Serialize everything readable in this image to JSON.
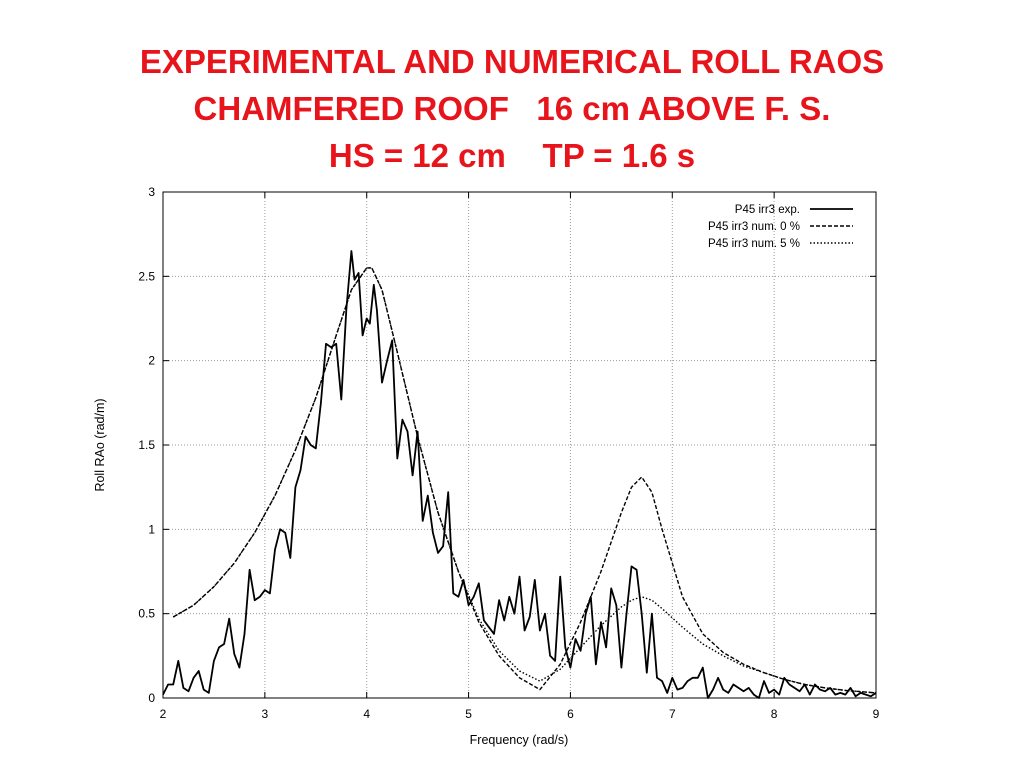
{
  "title": {
    "line1": "EXPERIMENTAL AND NUMERICAL ROLL RAOS",
    "line2": "CHAMFERED ROOF   16 cm ABOVE F. S.",
    "line3": "HS = 12 cm    TP = 1.6 s"
  },
  "colors": {
    "title": "#e8141b",
    "series": "#000000",
    "grid": "#9a9a9a"
  },
  "chart_data": {
    "type": "line",
    "xlabel": "Frequency  (rad/s)",
    "ylabel": "Roll RAo  (rad/m)",
    "xlim": [
      2,
      9
    ],
    "ylim": [
      0,
      3
    ],
    "xticks": [
      "2",
      "3",
      "4",
      "5",
      "6",
      "7",
      "8",
      "9"
    ],
    "yticks": [
      "0",
      "0.5",
      "1",
      "1.5",
      "2",
      "2.5",
      "3"
    ],
    "grid": true,
    "legend_position": "top-right",
    "series": [
      {
        "name": "P45   irr3   exp.",
        "style": "solid",
        "x": [
          2.0,
          2.05,
          2.1,
          2.15,
          2.2,
          2.25,
          2.3,
          2.35,
          2.4,
          2.45,
          2.5,
          2.55,
          2.6,
          2.65,
          2.7,
          2.75,
          2.8,
          2.85,
          2.9,
          2.95,
          3.0,
          3.05,
          3.1,
          3.15,
          3.2,
          3.25,
          3.3,
          3.35,
          3.4,
          3.45,
          3.5,
          3.55,
          3.6,
          3.65,
          3.7,
          3.75,
          3.8,
          3.85,
          3.88,
          3.92,
          3.96,
          4.0,
          4.03,
          4.07,
          4.1,
          4.15,
          4.2,
          4.25,
          4.3,
          4.35,
          4.4,
          4.45,
          4.5,
          4.55,
          4.6,
          4.65,
          4.7,
          4.75,
          4.8,
          4.85,
          4.9,
          4.95,
          5.0,
          5.05,
          5.1,
          5.15,
          5.2,
          5.25,
          5.3,
          5.35,
          5.4,
          5.45,
          5.5,
          5.55,
          5.6,
          5.65,
          5.7,
          5.75,
          5.8,
          5.85,
          5.9,
          5.95,
          6.0,
          6.05,
          6.1,
          6.15,
          6.2,
          6.25,
          6.3,
          6.35,
          6.4,
          6.45,
          6.5,
          6.55,
          6.6,
          6.65,
          6.7,
          6.75,
          6.8,
          6.85,
          6.9,
          6.95,
          7.0,
          7.05,
          7.1,
          7.15,
          7.2,
          7.25,
          7.3,
          7.35,
          7.4,
          7.45,
          7.5,
          7.55,
          7.6,
          7.65,
          7.7,
          7.75,
          7.8,
          7.85,
          7.9,
          7.95,
          8.0,
          8.05,
          8.1,
          8.15,
          8.2,
          8.25,
          8.3,
          8.35,
          8.4,
          8.45,
          8.5,
          8.55,
          8.6,
          8.65,
          8.7,
          8.75,
          8.8,
          8.85,
          8.9,
          8.95,
          9.0
        ],
        "y": [
          0.02,
          0.08,
          0.08,
          0.22,
          0.06,
          0.04,
          0.12,
          0.16,
          0.05,
          0.03,
          0.22,
          0.3,
          0.32,
          0.47,
          0.26,
          0.18,
          0.38,
          0.76,
          0.58,
          0.6,
          0.64,
          0.62,
          0.88,
          1.0,
          0.98,
          0.83,
          1.25,
          1.35,
          1.55,
          1.5,
          1.48,
          1.75,
          2.1,
          2.08,
          2.1,
          1.77,
          2.3,
          2.65,
          2.48,
          2.52,
          2.15,
          2.25,
          2.22,
          2.45,
          2.3,
          1.87,
          2.0,
          2.12,
          1.42,
          1.65,
          1.58,
          1.32,
          1.58,
          1.05,
          1.2,
          0.98,
          0.86,
          0.9,
          1.22,
          0.62,
          0.6,
          0.7,
          0.55,
          0.6,
          0.68,
          0.46,
          0.42,
          0.38,
          0.58,
          0.46,
          0.6,
          0.5,
          0.72,
          0.4,
          0.48,
          0.7,
          0.4,
          0.5,
          0.25,
          0.22,
          0.72,
          0.3,
          0.18,
          0.35,
          0.28,
          0.5,
          0.6,
          0.2,
          0.45,
          0.3,
          0.65,
          0.55,
          0.18,
          0.5,
          0.78,
          0.76,
          0.5,
          0.15,
          0.5,
          0.12,
          0.1,
          0.03,
          0.12,
          0.05,
          0.06,
          0.1,
          0.12,
          0.12,
          0.18,
          0.0,
          0.05,
          0.12,
          0.05,
          0.03,
          0.08,
          0.06,
          0.04,
          0.06,
          0.02,
          0.0,
          0.1,
          0.03,
          0.05,
          0.02,
          0.12,
          0.08,
          0.06,
          0.04,
          0.08,
          0.02,
          0.08,
          0.05,
          0.04,
          0.06,
          0.02,
          0.03,
          0.02,
          0.06,
          0.01,
          0.03,
          0.02,
          0.01,
          0.03
        ]
      },
      {
        "name": "P45   irr3   num.   0 %",
        "style": "dashed",
        "x": [
          2.1,
          2.3,
          2.5,
          2.7,
          2.9,
          3.1,
          3.3,
          3.5,
          3.7,
          3.85,
          4.0,
          4.05,
          4.15,
          4.3,
          4.5,
          4.7,
          4.9,
          5.1,
          5.3,
          5.5,
          5.7,
          5.9,
          6.1,
          6.3,
          6.5,
          6.6,
          6.7,
          6.8,
          6.9,
          7.1,
          7.3,
          7.5,
          7.7,
          7.9,
          8.1,
          8.3,
          8.5,
          8.7,
          8.9,
          9.0
        ],
        "y": [
          0.48,
          0.55,
          0.66,
          0.8,
          0.98,
          1.2,
          1.47,
          1.78,
          2.15,
          2.42,
          2.55,
          2.55,
          2.42,
          2.05,
          1.55,
          1.1,
          0.75,
          0.45,
          0.25,
          0.12,
          0.05,
          0.2,
          0.45,
          0.75,
          1.1,
          1.25,
          1.31,
          1.22,
          1.0,
          0.6,
          0.38,
          0.27,
          0.2,
          0.15,
          0.11,
          0.08,
          0.06,
          0.045,
          0.035,
          0.03
        ]
      },
      {
        "name": "P45   irr3   num.   5 %",
        "style": "dotted",
        "x": [
          2.1,
          2.3,
          2.5,
          2.7,
          2.9,
          3.1,
          3.3,
          3.5,
          3.7,
          3.85,
          4.0,
          4.05,
          4.15,
          4.3,
          4.5,
          4.7,
          4.9,
          5.1,
          5.3,
          5.5,
          5.7,
          5.9,
          6.1,
          6.3,
          6.5,
          6.6,
          6.7,
          6.8,
          6.9,
          7.1,
          7.3,
          7.5,
          7.7,
          7.9,
          8.1,
          8.3,
          8.5,
          8.7,
          8.9,
          9.0
        ],
        "y": [
          0.48,
          0.55,
          0.66,
          0.8,
          0.98,
          1.2,
          1.47,
          1.78,
          2.15,
          2.42,
          2.55,
          2.55,
          2.42,
          2.05,
          1.55,
          1.1,
          0.75,
          0.47,
          0.28,
          0.16,
          0.1,
          0.17,
          0.3,
          0.43,
          0.54,
          0.58,
          0.6,
          0.58,
          0.53,
          0.42,
          0.32,
          0.25,
          0.19,
          0.15,
          0.11,
          0.08,
          0.06,
          0.045,
          0.035,
          0.03
        ]
      }
    ]
  }
}
